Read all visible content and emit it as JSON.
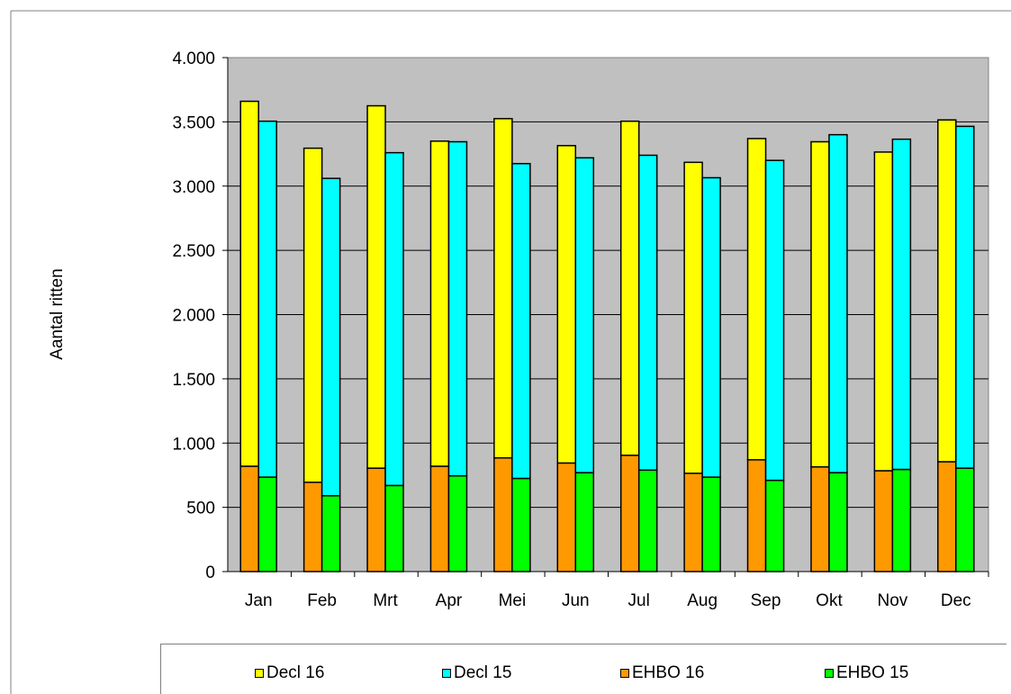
{
  "chart_data": {
    "type": "bar",
    "layout": "grouped-stacked",
    "categories": [
      "Jan",
      "Feb",
      "Mrt",
      "Apr",
      "Mei",
      "Jun",
      "Jul",
      "Aug",
      "Sep",
      "Okt",
      "Nov",
      "Dec"
    ],
    "ylabel": "Aantal ritten",
    "ylim": [
      0,
      4000
    ],
    "yticks": [
      0,
      500,
      1000,
      1500,
      2000,
      2500,
      3000,
      3500,
      4000
    ],
    "ytick_labels": [
      "0",
      "500",
      "1.000",
      "1.500",
      "2.000",
      "2.500",
      "3.000",
      "3.500",
      "4.000"
    ],
    "grid": true,
    "legend_position": "bottom",
    "series": [
      {
        "name": "Decl 16",
        "stack": "2016",
        "color": "#ffff00",
        "values": [
          2840,
          2600,
          2820,
          2530,
          2640,
          2470,
          2600,
          2420,
          2500,
          2530,
          2480,
          2660
        ]
      },
      {
        "name": "Decl 15",
        "stack": "2015",
        "color": "#00ffff",
        "values": [
          2770,
          2470,
          2590,
          2600,
          2450,
          2450,
          2450,
          2330,
          2490,
          2630,
          2570,
          2660
        ]
      },
      {
        "name": "EHBO 16",
        "stack": "2016",
        "color": "#ff9900",
        "values": [
          820,
          695,
          805,
          820,
          885,
          845,
          905,
          765,
          870,
          815,
          785,
          855
        ]
      },
      {
        "name": "EHBO 15",
        "stack": "2015",
        "color": "#00ff00",
        "values": [
          735,
          590,
          670,
          745,
          725,
          770,
          790,
          735,
          710,
          770,
          795,
          805
        ]
      }
    ]
  }
}
